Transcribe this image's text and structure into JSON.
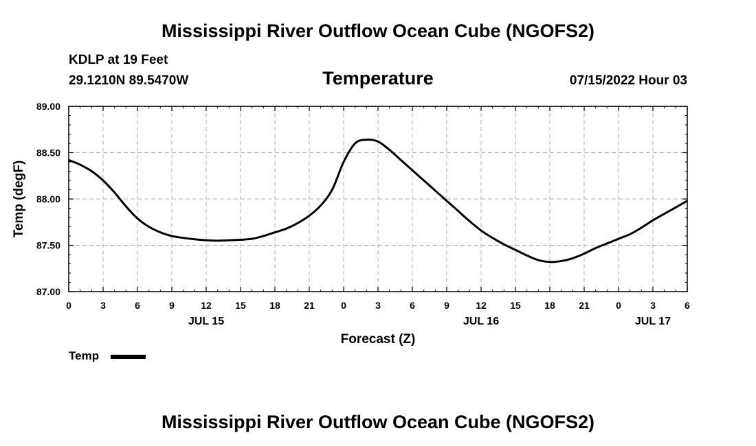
{
  "header": {
    "main_title": "Mississippi River Outflow Ocean Cube (NGOFS2)",
    "station": "KDLP at 19 Feet",
    "coords": "29.1210N  89.5470W",
    "chart_title": "Temperature",
    "datetime": "07/15/2022 Hour 03"
  },
  "legend": {
    "label": "Temp"
  },
  "footer": {
    "title": "Mississippi River Outflow Ocean Cube (NGOFS2)"
  },
  "colors": {
    "line": "#000000",
    "grid": "#b0b0b0",
    "background": "#ffffff"
  },
  "chart_data": {
    "type": "line",
    "title": "Temperature",
    "xlabel": "Forecast (Z)",
    "ylabel": "Temp (degF)",
    "ylim": [
      87.0,
      89.0
    ],
    "xlim": [
      0,
      54
    ],
    "y_ticks": [
      "87.00",
      "87.50",
      "88.00",
      "88.50",
      "89.00"
    ],
    "y_tick_values": [
      87.0,
      87.5,
      88.0,
      88.5,
      89.0
    ],
    "x_tick_values": [
      0,
      3,
      6,
      9,
      12,
      15,
      18,
      21,
      24,
      27,
      30,
      33,
      36,
      39,
      42,
      45,
      48,
      51,
      54
    ],
    "x_tick_labels": [
      "0",
      "3",
      "6",
      "9",
      "12",
      "15",
      "18",
      "21",
      "0",
      "3",
      "6",
      "9",
      "12",
      "15",
      "18",
      "21",
      "0",
      "3",
      "6"
    ],
    "date_labels": [
      {
        "label": "JUL 15",
        "hour": 12
      },
      {
        "label": "JUL 16",
        "hour": 36
      },
      {
        "label": "JUL 17",
        "hour": 51
      }
    ],
    "grid": true,
    "series": [
      {
        "name": "Temp",
        "x": [
          0,
          1,
          2,
          3,
          4,
          5,
          6,
          7,
          8,
          9,
          10,
          11,
          12,
          13,
          14,
          15,
          16,
          17,
          18,
          19,
          20,
          21,
          22,
          23,
          24,
          25,
          26,
          27,
          28,
          29,
          30,
          31,
          32,
          33,
          34,
          35,
          36,
          37,
          38,
          39,
          40,
          41,
          42,
          43,
          44,
          45,
          46,
          47,
          48,
          49,
          50,
          51,
          52,
          53,
          54
        ],
        "values": [
          88.42,
          88.37,
          88.3,
          88.2,
          88.07,
          87.92,
          87.79,
          87.7,
          87.64,
          87.6,
          87.58,
          87.565,
          87.555,
          87.55,
          87.555,
          87.56,
          87.57,
          87.6,
          87.64,
          87.68,
          87.74,
          87.82,
          87.93,
          88.1,
          88.4,
          88.6,
          88.64,
          88.62,
          88.53,
          88.42,
          88.31,
          88.2,
          88.09,
          87.98,
          87.87,
          87.76,
          87.66,
          87.58,
          87.51,
          87.45,
          87.39,
          87.34,
          87.32,
          87.33,
          87.36,
          87.41,
          87.47,
          87.52,
          87.57,
          87.62,
          87.69,
          87.77,
          87.84,
          87.91,
          87.98
        ]
      }
    ]
  }
}
